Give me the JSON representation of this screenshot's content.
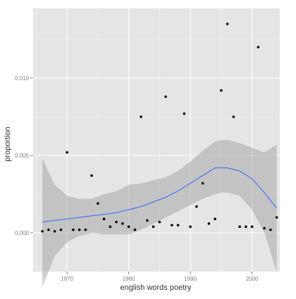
{
  "chart_data": {
    "type": "scatter",
    "title": "",
    "xlabel": "english words poetry",
    "ylabel": "proportion",
    "xlim": [
      1964.5,
      2004.5
    ],
    "ylim": [
      -0.0025,
      0.0145
    ],
    "x_ticks": [
      1970,
      1980,
      1990,
      2000
    ],
    "x_tick_labels": [
      "1970",
      "1980",
      "1990",
      "2000"
    ],
    "y_ticks": [
      0.0,
      0.005,
      0.01
    ],
    "y_tick_labels": [
      "0.000",
      "0.005",
      "0.010"
    ],
    "grid": true,
    "legend": "none",
    "colors": {
      "panel": "#e5e5e5",
      "grid_major": "#ffffff",
      "grid_minor": "#f2f2f2",
      "ribbon": "#999999",
      "smooth_line": "#3366ff",
      "points": "#000000",
      "axis_text": "#7f7f7f",
      "title_text": "#333333"
    },
    "points": [
      {
        "x": 1966,
        "y": 0.0001
      },
      {
        "x": 1967,
        "y": 0.0002
      },
      {
        "x": 1968,
        "y": 0.0001
      },
      {
        "x": 1969,
        "y": 0.0002
      },
      {
        "x": 1970,
        "y": 0.0052
      },
      {
        "x": 1971,
        "y": 0.0002
      },
      {
        "x": 1972,
        "y": 0.0002
      },
      {
        "x": 1973,
        "y": 0.0002
      },
      {
        "x": 1974,
        "y": 0.0037
      },
      {
        "x": 1975,
        "y": 0.0019
      },
      {
        "x": 1976,
        "y": 0.0009
      },
      {
        "x": 1977,
        "y": 0.0004
      },
      {
        "x": 1978,
        "y": 0.0007
      },
      {
        "x": 1979,
        "y": 0.0006
      },
      {
        "x": 1980,
        "y": 0.0004
      },
      {
        "x": 1981,
        "y": 0.0002
      },
      {
        "x": 1982,
        "y": 0.0075
      },
      {
        "x": 1983,
        "y": 0.0008
      },
      {
        "x": 1984,
        "y": 0.0004
      },
      {
        "x": 1985,
        "y": 0.0007
      },
      {
        "x": 1986,
        "y": 0.0088
      },
      {
        "x": 1987,
        "y": 0.0005
      },
      {
        "x": 1988,
        "y": 0.0005
      },
      {
        "x": 1989,
        "y": 0.0077
      },
      {
        "x": 1990,
        "y": 0.0004
      },
      {
        "x": 1991,
        "y": 0.0017
      },
      {
        "x": 1992,
        "y": 0.0032
      },
      {
        "x": 1993,
        "y": 0.0006
      },
      {
        "x": 1994,
        "y": 0.0009
      },
      {
        "x": 1995,
        "y": 0.0092
      },
      {
        "x": 1996,
        "y": 0.0135
      },
      {
        "x": 1997,
        "y": 0.0075
      },
      {
        "x": 1998,
        "y": 0.0004
      },
      {
        "x": 1999,
        "y": 0.0004
      },
      {
        "x": 2000,
        "y": 0.0004
      },
      {
        "x": 2001,
        "y": 0.012
      },
      {
        "x": 2002,
        "y": 0.0003
      },
      {
        "x": 2003,
        "y": 0.0002
      },
      {
        "x": 2004,
        "y": 0.001
      }
    ],
    "smooth": {
      "x": [
        1966,
        1968,
        1970,
        1972,
        1974,
        1976,
        1978,
        1980,
        1982,
        1984,
        1986,
        1988,
        1990,
        1992,
        1994,
        1995,
        1996,
        1998,
        2000,
        2002,
        2004
      ],
      "y": [
        0.0007,
        0.0008,
        0.0009,
        0.001,
        0.0011,
        0.0012,
        0.0013,
        0.0015,
        0.0017,
        0.002,
        0.0023,
        0.0027,
        0.0032,
        0.0037,
        0.0042,
        0.0042,
        0.0042,
        0.004,
        0.0035,
        0.0026,
        0.0016
      ],
      "lower": [
        -0.0035,
        -0.0015,
        -0.0006,
        -0.0002,
        0.0,
        -0.0001,
        -0.0001,
        -0.0001,
        0.0002,
        0.0006,
        0.001,
        0.0014,
        0.0018,
        0.0022,
        0.0025,
        0.0026,
        0.0026,
        0.0024,
        0.0015,
        0.0,
        -0.0025
      ],
      "upper": [
        0.0048,
        0.0031,
        0.0024,
        0.0022,
        0.0022,
        0.0025,
        0.0027,
        0.0031,
        0.0032,
        0.0034,
        0.0036,
        0.004,
        0.0046,
        0.0053,
        0.0059,
        0.006,
        0.006,
        0.0058,
        0.0055,
        0.0052,
        0.0057
      ]
    }
  }
}
